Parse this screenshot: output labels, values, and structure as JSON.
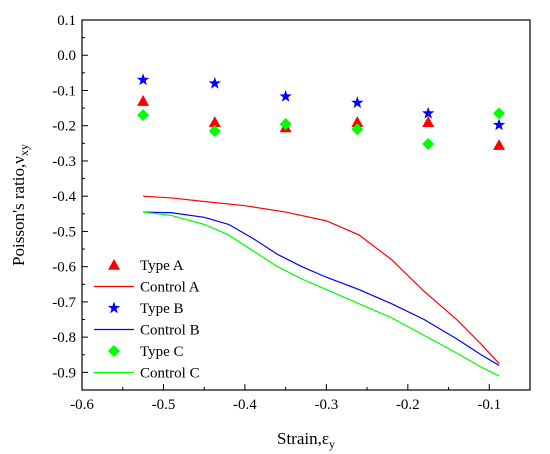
{
  "chart_data": {
    "type": "scatter",
    "xlabel": {
      "main": "Strain,",
      "symbol": "ε",
      "sub": "y"
    },
    "ylabel": {
      "main": "Poisson's ratio,",
      "symbol": "ν",
      "sub": "xy"
    },
    "xlim": [
      -0.6,
      -0.05
    ],
    "ylim": [
      -0.95,
      0.1
    ],
    "x_ticks": [
      "-0.6",
      "-0.5",
      "-0.4",
      "-0.3",
      "-0.2",
      "-0.1"
    ],
    "y_ticks": [
      "0.1",
      "0.0",
      "-0.1",
      "-0.2",
      "-0.3",
      "-0.4",
      "-0.5",
      "-0.6",
      "-0.7",
      "-0.8",
      "-0.9"
    ],
    "grid": false,
    "legend_position": "bottom-left",
    "series": [
      {
        "name": "Type A",
        "kind": "marker",
        "marker": "triangle",
        "color": "#ff0000",
        "points": [
          [
            -0.525,
            -0.13
          ],
          [
            -0.437,
            -0.19
          ],
          [
            -0.35,
            -0.205
          ],
          [
            -0.262,
            -0.19
          ],
          [
            -0.175,
            -0.19
          ],
          [
            -0.088,
            -0.255
          ]
        ]
      },
      {
        "name": "Control A",
        "kind": "line",
        "color": "#ff0000",
        "points": [
          [
            -0.525,
            -0.4
          ],
          [
            -0.49,
            -0.405
          ],
          [
            -0.45,
            -0.415
          ],
          [
            -0.4,
            -0.427
          ],
          [
            -0.35,
            -0.445
          ],
          [
            -0.3,
            -0.47
          ],
          [
            -0.26,
            -0.51
          ],
          [
            -0.22,
            -0.58
          ],
          [
            -0.18,
            -0.67
          ],
          [
            -0.14,
            -0.75
          ],
          [
            -0.11,
            -0.82
          ],
          [
            -0.088,
            -0.875
          ]
        ]
      },
      {
        "name": "Type B",
        "kind": "marker",
        "marker": "star",
        "color": "#0000ff",
        "points": [
          [
            -0.525,
            -0.07
          ],
          [
            -0.437,
            -0.08
          ],
          [
            -0.35,
            -0.117
          ],
          [
            -0.262,
            -0.135
          ],
          [
            -0.175,
            -0.165
          ],
          [
            -0.088,
            -0.198
          ]
        ]
      },
      {
        "name": "Control B",
        "kind": "line",
        "color": "#0000ff",
        "points": [
          [
            -0.525,
            -0.445
          ],
          [
            -0.49,
            -0.447
          ],
          [
            -0.45,
            -0.46
          ],
          [
            -0.42,
            -0.48
          ],
          [
            -0.39,
            -0.52
          ],
          [
            -0.36,
            -0.565
          ],
          [
            -0.33,
            -0.6
          ],
          [
            -0.3,
            -0.63
          ],
          [
            -0.26,
            -0.665
          ],
          [
            -0.22,
            -0.705
          ],
          [
            -0.18,
            -0.75
          ],
          [
            -0.14,
            -0.805
          ],
          [
            -0.11,
            -0.85
          ],
          [
            -0.088,
            -0.88
          ]
        ]
      },
      {
        "name": "Type C",
        "kind": "marker",
        "marker": "diamond",
        "color": "#00ff00",
        "points": [
          [
            -0.525,
            -0.17
          ],
          [
            -0.437,
            -0.215
          ],
          [
            -0.35,
            -0.195
          ],
          [
            -0.262,
            -0.21
          ],
          [
            -0.175,
            -0.252
          ],
          [
            -0.088,
            -0.165
          ]
        ]
      },
      {
        "name": "Control C",
        "kind": "line",
        "color": "#00ff00",
        "points": [
          [
            -0.525,
            -0.445
          ],
          [
            -0.49,
            -0.455
          ],
          [
            -0.45,
            -0.48
          ],
          [
            -0.42,
            -0.51
          ],
          [
            -0.39,
            -0.555
          ],
          [
            -0.36,
            -0.6
          ],
          [
            -0.33,
            -0.635
          ],
          [
            -0.3,
            -0.665
          ],
          [
            -0.26,
            -0.705
          ],
          [
            -0.22,
            -0.745
          ],
          [
            -0.18,
            -0.795
          ],
          [
            -0.14,
            -0.845
          ],
          [
            -0.11,
            -0.885
          ],
          [
            -0.088,
            -0.91
          ]
        ]
      }
    ]
  }
}
